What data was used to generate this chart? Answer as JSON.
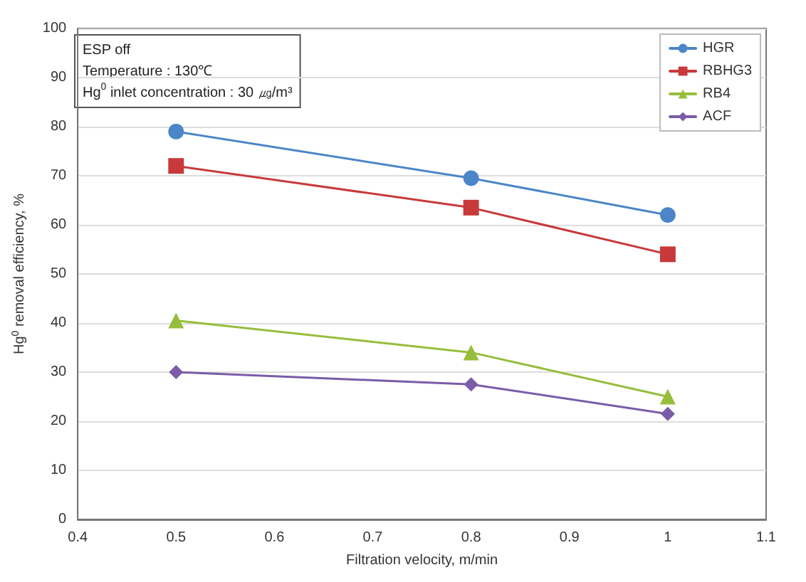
{
  "chart_data": {
    "type": "line",
    "xlabel": "Filtration velocity, m/min",
    "ylabel": "Hg$^{0}$ removal efficiency, %",
    "annotations": [
      "ESP off",
      "Temperature : 130℃",
      "Hg$^{0}$ inlet concentration : 30 ㎍/m³"
    ],
    "x": [
      0.5,
      0.8,
      1
    ],
    "series": [
      {
        "name": "HGR",
        "color": "#4a86c8",
        "marker": "circle",
        "values": [
          79,
          69.5,
          62
        ]
      },
      {
        "name": "RBHG3",
        "color": "#c8393b",
        "marker": "square",
        "values": [
          72,
          63.5,
          54
        ]
      },
      {
        "name": "RB4",
        "color": "#96bd3c",
        "marker": "triangle",
        "values": [
          40.5,
          34,
          25
        ]
      },
      {
        "name": "ACF",
        "color": "#7a5ca8",
        "marker": "diamond",
        "values": [
          30,
          27.5,
          21.5
        ]
      }
    ],
    "xlim": [
      0.4,
      1.1
    ],
    "xticks": [
      0.4,
      0.5,
      0.6,
      0.7,
      0.8,
      0.9,
      1,
      1.1
    ],
    "ylim": [
      0,
      100
    ],
    "yticks": [
      0,
      10,
      20,
      30,
      40,
      50,
      60,
      70,
      80,
      90,
      100
    ],
    "grid": "y",
    "legend": "top right",
    "line_style": "solid"
  }
}
